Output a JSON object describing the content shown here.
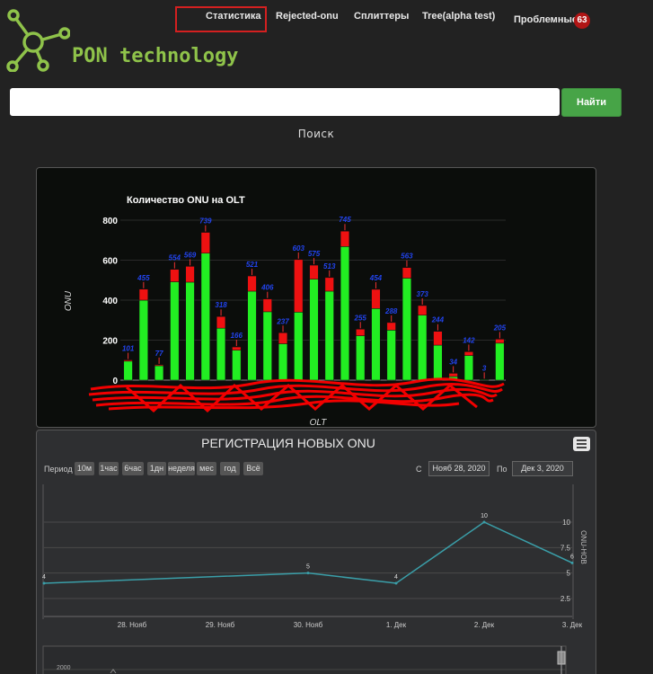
{
  "nav": {
    "items": [
      "Статистика",
      "Rejected-onu",
      "Сплиттеры",
      "Tree(alpha test)",
      "Проблемные"
    ],
    "problems_count": "63"
  },
  "brand": {
    "name": "PON technology",
    "accent_color": "#8fc34a"
  },
  "search": {
    "button_label": "Найти",
    "caption": "Поиск",
    "value": ""
  },
  "chart_data": [
    {
      "type": "bar",
      "title": "Количество ONU на OLT",
      "xlabel": "OLT",
      "ylabel": "ONU",
      "ylim": [
        0,
        800
      ],
      "yticks": [
        "0",
        "200",
        "400",
        "600",
        "800"
      ],
      "labels": [
        "101",
        "455",
        "77",
        "554",
        "569",
        "739",
        "318",
        "166",
        "521",
        "406",
        "237",
        "603",
        "575",
        "513",
        "745",
        "255",
        "454",
        "288",
        "563",
        "373",
        "244",
        "34",
        "142",
        "3",
        "205"
      ],
      "series": [
        {
          "color": "#22ee22",
          "values": [
            95,
            400,
            72,
            492,
            490,
            635,
            260,
            150,
            445,
            342,
            182,
            340,
            505,
            445,
            668,
            222,
            358,
            250,
            510,
            325,
            175,
            18,
            123,
            3,
            185
          ]
        },
        {
          "color": "#ee1111",
          "values": [
            6,
            55,
            5,
            62,
            79,
            104,
            58,
            16,
            76,
            64,
            55,
            263,
            70,
            68,
            77,
            33,
            96,
            38,
            53,
            48,
            69,
            16,
            19,
            0,
            20
          ]
        }
      ],
      "colors": {
        "grid": "#2a2a2a",
        "labels": "#2244ee"
      }
    },
    {
      "type": "line",
      "title": "РЕГИСТРАЦИЯ НОВЫХ ONU",
      "ylabel": "ONU-НОВ",
      "x": [
        "27. Нояб",
        "28. Нояб",
        "29. Нояб",
        "30. Нояб",
        "1. Дек",
        "2. Дек",
        "3. Дек"
      ],
      "xticks": [
        "28. Нояб",
        "29. Нояб",
        "30. Нояб",
        "1. Дек",
        "2. Дек",
        "3. Дек"
      ],
      "values": [
        4,
        null,
        null,
        5,
        4,
        10,
        6
      ],
      "ylim": [
        1,
        13
      ],
      "yticks": [
        "2.5",
        "5",
        "7.5",
        "10"
      ],
      "line_color": "#3a9ea8",
      "navigator_label": "2000"
    }
  ],
  "registration": {
    "period_label": "Период",
    "periods": [
      "10м",
      "1час",
      "6час",
      "1дн",
      "неделя",
      "мес",
      "год",
      "Всё"
    ],
    "from_label": "С",
    "from_date": "Нояб 28, 2020",
    "to_label": "По",
    "to_date": "Дек 3, 2020"
  }
}
